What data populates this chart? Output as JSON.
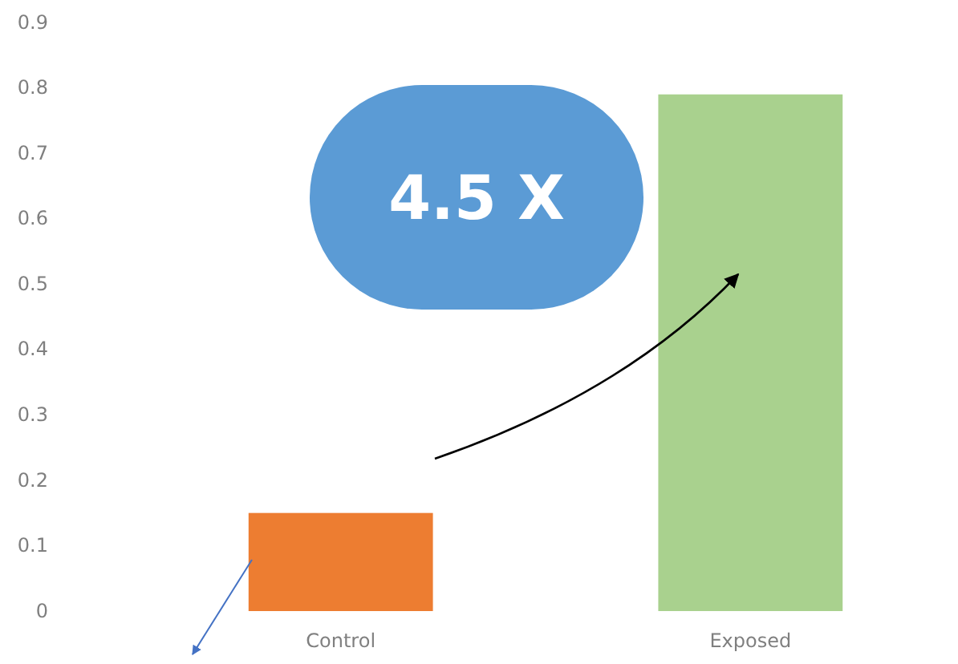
{
  "chart_data": {
    "type": "bar",
    "categories": [
      "Control",
      "Exposed"
    ],
    "values": [
      0.15,
      0.79
    ],
    "colors": [
      "#ed7d31",
      "#a9d18e"
    ],
    "ylim": [
      0,
      0.9
    ],
    "yticks": [
      0,
      0.1,
      0.2,
      0.3,
      0.4,
      0.5,
      0.6,
      0.7,
      0.8,
      0.9
    ],
    "grid": false,
    "annotations": [
      "4.5 X"
    ]
  }
}
